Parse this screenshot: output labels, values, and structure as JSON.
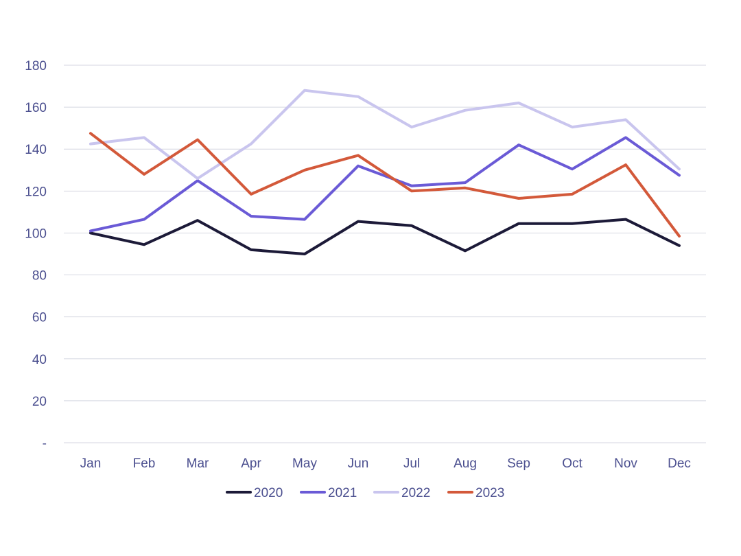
{
  "chart_data": {
    "type": "line",
    "categories": [
      "Jan",
      "Feb",
      "Mar",
      "Apr",
      "May",
      "Jun",
      "Jul",
      "Aug",
      "Sep",
      "Oct",
      "Nov",
      "Dec"
    ],
    "y_ticks": [
      "-",
      "20",
      "40",
      "60",
      "80",
      "100",
      "120",
      "140",
      "160",
      "180"
    ],
    "ylim": [
      0,
      180
    ],
    "grid": true,
    "legend_position": "bottom",
    "series": [
      {
        "name": "2020",
        "color": "#1c1a38",
        "values": [
          100,
          94.5,
          106,
          92,
          90,
          105.5,
          103.5,
          91.5,
          104.5,
          104.5,
          106.5,
          94
        ]
      },
      {
        "name": "2021",
        "color": "#6a5ad6",
        "values": [
          101,
          106.5,
          125,
          108,
          106.5,
          132,
          122.5,
          124,
          142,
          130.5,
          145.5,
          127.5
        ]
      },
      {
        "name": "2022",
        "color": "#c9c5ee",
        "values": [
          142.5,
          145.5,
          126,
          142.5,
          168,
          165,
          150.5,
          158.5,
          162,
          150.5,
          154,
          130.5
        ]
      },
      {
        "name": "2023",
        "color": "#d3593a",
        "values": [
          147.5,
          128,
          144.5,
          118.5,
          130,
          137,
          120,
          121.5,
          116.5,
          118.5,
          132.5,
          98.5
        ]
      }
    ]
  }
}
